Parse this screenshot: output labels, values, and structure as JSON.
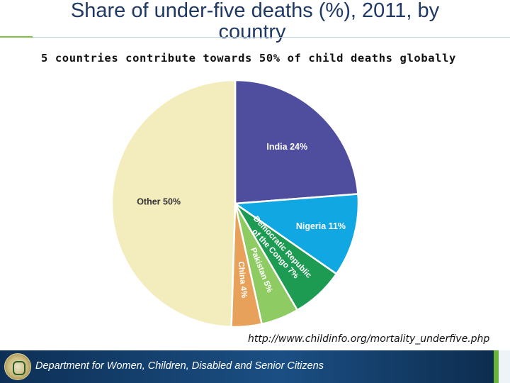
{
  "slide": {
    "title_line1": "Share of under-five deaths (%), 2011, by",
    "title_line2": "country",
    "subtitle": "5 countries contribute towards 50% of child deaths globally",
    "source": "http://www.childinfo.org/mortality_underfive.php",
    "footer_text": "Department for Women, Children, Disabled and Senior Citizens"
  },
  "chart_data": {
    "type": "pie",
    "title": "Share of under-five deaths (%), 2011, by country",
    "subtitle": "5 countries contribute towards 50% of child deaths globally",
    "start": "12 o'clock, clockwise",
    "slices": [
      {
        "label": "India",
        "value": 24,
        "text": "India 24%",
        "color": "#4f4d9e"
      },
      {
        "label": "Nigeria",
        "value": 11,
        "text": "Nigeria 11%",
        "color": "#11a7e3"
      },
      {
        "label": "Democratic Republic of the Congo",
        "value": 7,
        "text_line1": "Democratic Republic",
        "text_line2": "of the Congo 7%",
        "color": "#1e9b52"
      },
      {
        "label": "Pakistan",
        "value": 5,
        "text": "Pakistan 5%",
        "color": "#8fcb63"
      },
      {
        "label": "China",
        "value": 4,
        "text": "China 4%",
        "color": "#e8a15a"
      },
      {
        "label": "Other",
        "value": 50,
        "text": "Other 50%",
        "color": "#f3edbd"
      }
    ]
  }
}
